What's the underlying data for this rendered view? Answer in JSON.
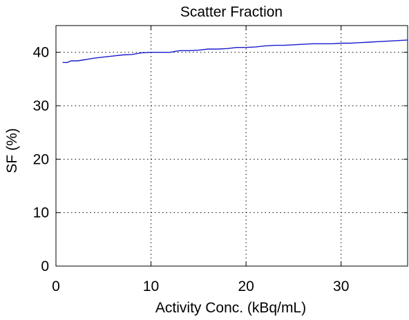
{
  "chart_data": {
    "type": "line",
    "title": "Scatter Fraction",
    "xlabel": "Activity Conc. (kBq/mL)",
    "ylabel": "SF (%)",
    "xlim": [
      0,
      37
    ],
    "ylim": [
      0,
      45
    ],
    "xticks": [
      0,
      10,
      20,
      30
    ],
    "yticks": [
      0,
      10,
      20,
      30,
      40
    ],
    "grid": true,
    "series": [
      {
        "color": "#1a1acc",
        "x": [
          0.7,
          1.2,
          1.6,
          2.3,
          3.0,
          4.0,
          5.0,
          6.0,
          7.0,
          8.0,
          9.0,
          10.0,
          11.0,
          12.0,
          13.0,
          14.0,
          15.0,
          16.0,
          17.0,
          18.0,
          19.0,
          20.0,
          21.0,
          22.0,
          23.0,
          24.0,
          25.0,
          26.0,
          27.0,
          28.0,
          29.0,
          30.0,
          31.0,
          32.0,
          33.0,
          34.0,
          35.0,
          36.0,
          37.0
        ],
        "y": [
          38.1,
          38.1,
          38.4,
          38.4,
          38.6,
          38.9,
          39.1,
          39.3,
          39.5,
          39.6,
          39.9,
          40.0,
          40.0,
          40.0,
          40.3,
          40.3,
          40.4,
          40.6,
          40.6,
          40.7,
          40.9,
          40.9,
          41.0,
          41.2,
          41.3,
          41.3,
          41.4,
          41.5,
          41.6,
          41.6,
          41.6,
          41.7,
          41.7,
          41.8,
          41.9,
          42.0,
          42.1,
          42.2,
          42.3
        ]
      }
    ]
  }
}
